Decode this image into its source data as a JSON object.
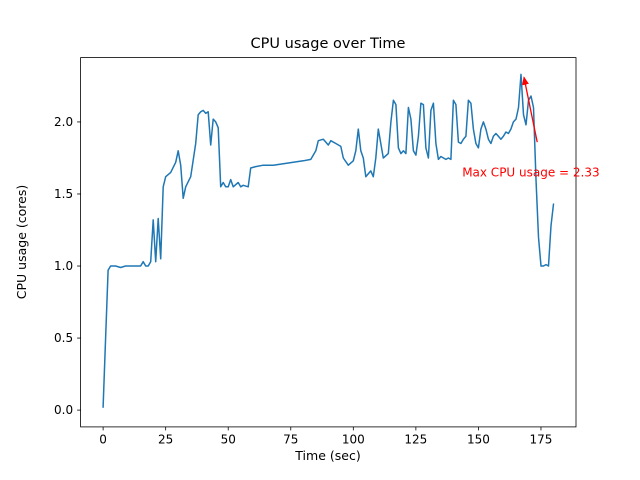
{
  "chart_data": {
    "type": "line",
    "title": "CPU usage over Time",
    "xlabel": "Time (sec)",
    "ylabel": "CPU usage (cores)",
    "xlim": [
      -9,
      189
    ],
    "ylim": [
      -0.1165,
      2.4465
    ],
    "xticks": [
      0,
      25,
      50,
      75,
      100,
      125,
      150,
      175
    ],
    "yticks": [
      0.0,
      0.5,
      1.0,
      1.5,
      2.0
    ],
    "grid": false,
    "legend": "none",
    "line_color": "#1f77b4",
    "axis_color": "#000000",
    "series_name": "CPU usage (cores)",
    "points": [
      [
        0,
        0.02
      ],
      [
        1,
        0.5
      ],
      [
        2,
        0.97
      ],
      [
        3,
        1.0
      ],
      [
        5,
        1.0
      ],
      [
        7,
        0.99
      ],
      [
        9,
        1.0
      ],
      [
        11,
        1.0
      ],
      [
        13,
        1.0
      ],
      [
        15,
        1.0
      ],
      [
        16,
        1.03
      ],
      [
        17,
        1.0
      ],
      [
        18,
        1.0
      ],
      [
        19,
        1.03
      ],
      [
        20,
        1.32
      ],
      [
        21,
        1.03
      ],
      [
        22,
        1.33
      ],
      [
        23,
        1.05
      ],
      [
        24,
        1.55
      ],
      [
        25,
        1.62
      ],
      [
        27,
        1.65
      ],
      [
        29,
        1.72
      ],
      [
        30,
        1.8
      ],
      [
        31,
        1.7
      ],
      [
        32,
        1.47
      ],
      [
        33,
        1.55
      ],
      [
        35,
        1.62
      ],
      [
        37,
        1.85
      ],
      [
        38,
        2.05
      ],
      [
        39,
        2.07
      ],
      [
        40,
        2.08
      ],
      [
        41,
        2.06
      ],
      [
        42,
        2.07
      ],
      [
        43,
        1.84
      ],
      [
        44,
        2.02
      ],
      [
        45,
        2.0
      ],
      [
        46,
        1.96
      ],
      [
        47,
        1.55
      ],
      [
        48,
        1.58
      ],
      [
        49,
        1.55
      ],
      [
        50,
        1.55
      ],
      [
        51,
        1.6
      ],
      [
        52,
        1.55
      ],
      [
        54,
        1.58
      ],
      [
        55,
        1.55
      ],
      [
        56,
        1.56
      ],
      [
        58,
        1.55
      ],
      [
        59,
        1.68
      ],
      [
        61,
        1.69
      ],
      [
        64,
        1.7
      ],
      [
        68,
        1.7
      ],
      [
        72,
        1.71
      ],
      [
        76,
        1.72
      ],
      [
        80,
        1.73
      ],
      [
        83,
        1.74
      ],
      [
        85,
        1.8
      ],
      [
        86,
        1.87
      ],
      [
        88,
        1.88
      ],
      [
        89,
        1.86
      ],
      [
        90,
        1.84
      ],
      [
        91,
        1.87
      ],
      [
        93,
        1.85
      ],
      [
        95,
        1.83
      ],
      [
        96,
        1.75
      ],
      [
        98,
        1.7
      ],
      [
        100,
        1.73
      ],
      [
        101,
        1.8
      ],
      [
        102,
        1.95
      ],
      [
        103,
        1.8
      ],
      [
        104,
        1.75
      ],
      [
        105,
        1.62
      ],
      [
        106,
        1.64
      ],
      [
        107,
        1.66
      ],
      [
        108,
        1.62
      ],
      [
        109,
        1.75
      ],
      [
        110,
        1.95
      ],
      [
        111,
        1.85
      ],
      [
        112,
        1.75
      ],
      [
        114,
        1.78
      ],
      [
        115,
        2.0
      ],
      [
        116,
        2.15
      ],
      [
        117,
        2.12
      ],
      [
        118,
        1.82
      ],
      [
        119,
        1.78
      ],
      [
        120,
        1.8
      ],
      [
        121,
        1.78
      ],
      [
        122,
        2.1
      ],
      [
        123,
        2.02
      ],
      [
        124,
        1.8
      ],
      [
        125,
        1.77
      ],
      [
        126,
        1.9
      ],
      [
        127,
        2.13
      ],
      [
        128,
        2.12
      ],
      [
        129,
        1.82
      ],
      [
        130,
        1.75
      ],
      [
        131,
        2.08
      ],
      [
        132,
        2.13
      ],
      [
        133,
        1.85
      ],
      [
        134,
        1.74
      ],
      [
        135,
        1.76
      ],
      [
        137,
        1.74
      ],
      [
        138,
        1.75
      ],
      [
        139,
        1.74
      ],
      [
        140,
        2.15
      ],
      [
        141,
        2.12
      ],
      [
        142,
        1.86
      ],
      [
        143,
        1.85
      ],
      [
        144,
        1.88
      ],
      [
        145,
        1.9
      ],
      [
        146,
        2.15
      ],
      [
        147,
        2.13
      ],
      [
        148,
        1.95
      ],
      [
        149,
        1.85
      ],
      [
        150,
        1.82
      ],
      [
        151,
        1.95
      ],
      [
        152,
        2.0
      ],
      [
        153,
        1.95
      ],
      [
        154,
        1.88
      ],
      [
        155,
        1.85
      ],
      [
        156,
        1.9
      ],
      [
        157,
        1.92
      ],
      [
        158,
        1.9
      ],
      [
        159,
        1.88
      ],
      [
        160,
        1.9
      ],
      [
        161,
        1.93
      ],
      [
        162,
        1.92
      ],
      [
        163,
        1.95
      ],
      [
        164,
        2.0
      ],
      [
        165,
        2.02
      ],
      [
        166,
        2.1
      ],
      [
        167,
        2.33
      ],
      [
        168,
        2.05
      ],
      [
        169,
        1.98
      ],
      [
        170,
        2.15
      ],
      [
        171,
        2.18
      ],
      [
        172,
        2.1
      ],
      [
        173,
        1.6
      ],
      [
        174,
        1.2
      ],
      [
        175,
        1.0
      ],
      [
        176,
        1.0
      ],
      [
        177,
        1.01
      ],
      [
        178,
        1.0
      ],
      [
        179,
        1.28
      ],
      [
        180,
        1.43
      ]
    ],
    "annotation": {
      "text": "Max CPU usage = 2.33",
      "color": "#ff0000",
      "text_pos": [
        143.5,
        1.62
      ],
      "arrow_start": [
        173.5,
        1.86
      ],
      "arrow_end": [
        168.2,
        2.31
      ]
    }
  }
}
